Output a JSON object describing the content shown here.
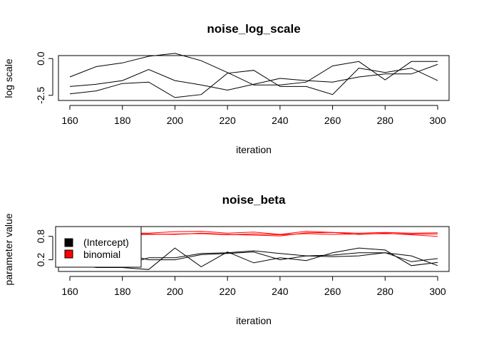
{
  "chart_data": [
    {
      "type": "line",
      "title": "noise_log_scale",
      "xlabel": "iteration",
      "ylabel": "log scale",
      "xlim": [
        160,
        300
      ],
      "ylim": [
        -2.85,
        0.2
      ],
      "xticks": [
        160,
        180,
        200,
        220,
        240,
        260,
        280,
        300
      ],
      "yticks": [
        0,
        -2.5
      ],
      "ytick_labels": [
        "0.0",
        "-2.5"
      ],
      "grid": false,
      "x": [
        160,
        170,
        180,
        190,
        200,
        210,
        220,
        230,
        240,
        250,
        260,
        270,
        280,
        290,
        300
      ],
      "series": [
        {
          "color": "#000000",
          "values": [
            -1.25,
            -0.55,
            -0.3,
            0.15,
            0.35,
            -0.15,
            -0.95,
            -1.8,
            -1.8,
            -1.6,
            -0.5,
            -0.2,
            -1.45,
            -0.2,
            -0.2
          ]
        },
        {
          "color": "#000000",
          "values": [
            -1.9,
            -1.75,
            -1.5,
            -0.75,
            -1.5,
            -1.8,
            -2.15,
            -1.75,
            -1.35,
            -1.5,
            -1.6,
            -1.25,
            -1.05,
            -1.05,
            -0.4
          ]
        },
        {
          "color": "#000000",
          "values": [
            -2.4,
            -2.2,
            -1.7,
            -1.6,
            -2.65,
            -2.45,
            -1.0,
            -0.8,
            -1.9,
            -1.9,
            -2.45,
            -0.65,
            -0.95,
            -0.65,
            -1.5
          ]
        }
      ]
    },
    {
      "type": "line",
      "title": "noise_beta",
      "xlabel": "iteration",
      "ylabel": "parameter value",
      "xlim": [
        160,
        300
      ],
      "ylim": [
        -0.1,
        1.05
      ],
      "xticks": [
        160,
        180,
        200,
        220,
        240,
        260,
        280,
        300
      ],
      "yticks": [
        0.2,
        0.8
      ],
      "ytick_labels": [
        "0.2",
        "0.8"
      ],
      "grid": false,
      "legend": {
        "position": "left",
        "entries": [
          {
            "label": "(Intercept)",
            "color": "#000000"
          },
          {
            "label": "binomial",
            "color": "#ff0000"
          }
        ]
      },
      "x": [
        160,
        170,
        180,
        190,
        200,
        210,
        220,
        230,
        240,
        250,
        260,
        270,
        280,
        290,
        300
      ],
      "series": [
        {
          "color": "#000000",
          "values": [
            0.05,
            0.15,
            0.35,
            0.2,
            0.2,
            0.33,
            0.36,
            0.4,
            0.2,
            0.3,
            0.28,
            0.3,
            0.38,
            0.3,
            0.05
          ]
        },
        {
          "color": "#000000",
          "values": [
            0.1,
            0.0,
            0.0,
            -0.05,
            0.5,
            0.02,
            0.4,
            0.12,
            0.25,
            0.18,
            0.38,
            0.5,
            0.45,
            0.05,
            0.13
          ]
        },
        {
          "color": "#000000",
          "values": [
            0.2,
            0.1,
            0.05,
            0.25,
            0.25,
            0.36,
            0.38,
            0.43,
            0.36,
            0.3,
            0.32,
            0.38,
            0.38,
            0.15,
            0.23
          ]
        },
        {
          "color": "#ff0000",
          "values": [
            0.9,
            0.87,
            0.89,
            0.88,
            0.92,
            0.93,
            0.88,
            0.91,
            0.85,
            0.93,
            0.9,
            0.88,
            0.9,
            0.88,
            0.89
          ]
        },
        {
          "color": "#ff0000",
          "values": [
            0.85,
            0.86,
            0.84,
            0.85,
            0.86,
            0.87,
            0.84,
            0.86,
            0.84,
            0.87,
            0.85,
            0.86,
            0.87,
            0.86,
            0.86
          ]
        },
        {
          "color": "#ff0000",
          "values": [
            0.88,
            0.82,
            0.87,
            0.86,
            0.85,
            0.88,
            0.85,
            0.83,
            0.81,
            0.89,
            0.9,
            0.85,
            0.88,
            0.84,
            0.8
          ]
        }
      ]
    }
  ]
}
